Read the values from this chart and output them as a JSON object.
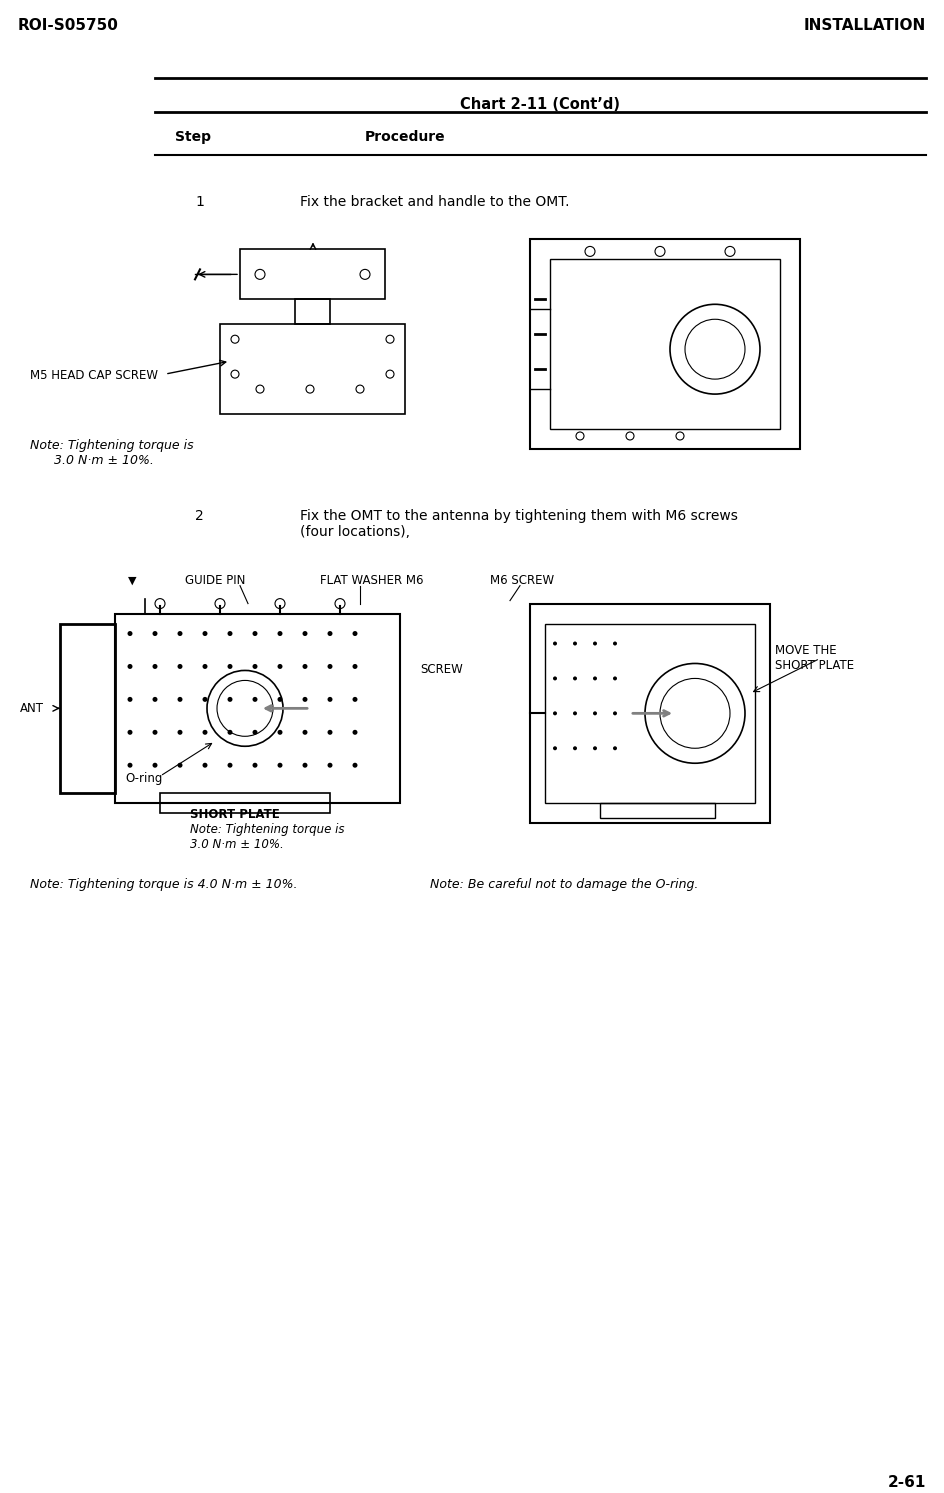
{
  "header_left": "ROI-S05750",
  "header_right": "INSTALLATION",
  "chart_title": "Chart 2-11 (Cont’d)",
  "col_step": "Step",
  "col_procedure": "Procedure",
  "footer_right": "2-61",
  "step1_num": "1",
  "step1_text": "Fix the bracket and handle to the OMT.",
  "step2_num": "2",
  "step2_text": "Fix the OMT to the antenna by tightening them with M6 screws\n(four locations),",
  "note1": "M5 HEAD CAP SCREW",
  "note2": "Note: Tightening torque is\n      3.0 N·m ± 10%.",
  "note3_left": "Note: Tightening torque is 4.0 N·m ± 10%.",
  "note3_right": "Note: Be careful not to damage the O-ring.",
  "label_guide_pin": "GUIDE PIN",
  "label_flat_washer": "FLAT WASHER M6",
  "label_m6_screw": "M6 SCREW",
  "label_ant": "ANT",
  "label_screw": "SCREW",
  "label_oring": "O-ring",
  "label_short_plate": "SHORT PLATE",
  "label_note_short": "Note: Tightening torque is\n3.0 N·m ± 10%.",
  "label_move_short": "MOVE THE\nSHORT PLATE",
  "bg_color": "#ffffff",
  "text_color": "#000000",
  "line_color": "#000000",
  "header_fontsize": 11,
  "title_fontsize": 10,
  "body_fontsize": 10,
  "small_fontsize": 8.5,
  "note_fontsize": 9
}
